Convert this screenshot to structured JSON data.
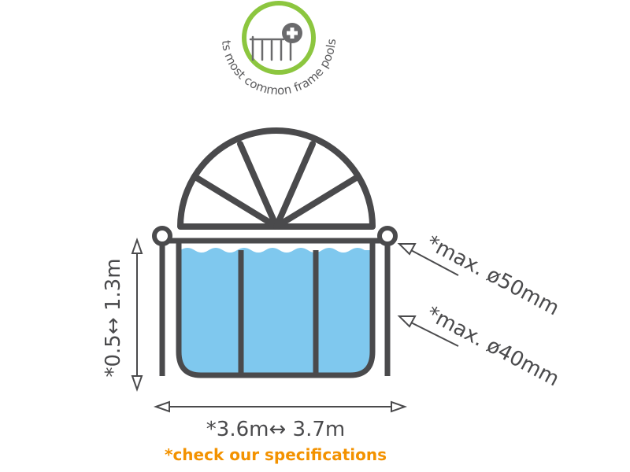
{
  "badge": {
    "caption": "fits most common frame pools*"
  },
  "dimensions": {
    "height": "*0.5↔ 1.3m",
    "width": "*3.6m↔ 3.7m",
    "top_rail": "*max. ø50mm",
    "leg": "*max. ø40mm"
  },
  "footnote": "*check our specifications",
  "colors": {
    "frame": "#4a4a4c",
    "water": "#7fc8ee",
    "badge_ring": "#8cc63f",
    "footnote": "#f39200"
  }
}
